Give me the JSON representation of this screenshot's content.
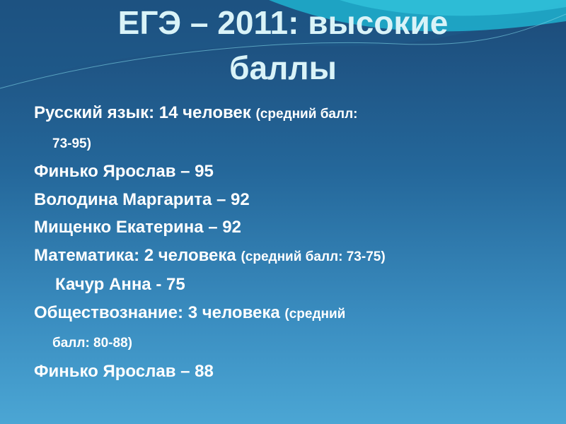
{
  "slide": {
    "title_line1": "ЕГЭ – 2011: высокие",
    "title_line2": "баллы",
    "lines": [
      {
        "main": "Русский язык: 14 человек ",
        "note": "(средний балл:"
      },
      {
        "main": "",
        "note": "73-95)"
      },
      {
        "main": "Финько Ярослав – 95",
        "note": ""
      },
      {
        "main": "Володина Маргарита – 92",
        "note": ""
      },
      {
        "main": "Мищенко Екатерина – 92",
        "note": ""
      },
      {
        "main": "Математика: 2 человека ",
        "note": "(средний балл: 73-75)"
      },
      {
        "main": "Качур Анна  - 75",
        "note": ""
      },
      {
        "main": "Обществознание: 3 человека ",
        "note": "(средний"
      },
      {
        "main": "",
        "note": "балл: 80-88)"
      },
      {
        "main": "Финько Ярослав – 88",
        "note": ""
      }
    ]
  },
  "colors": {
    "title": "#d9f3f8",
    "text": "#ffffff",
    "bg_top": "#1c4a78",
    "bg_bottom": "#4ba6d4",
    "wave": "#1fb2cf"
  }
}
